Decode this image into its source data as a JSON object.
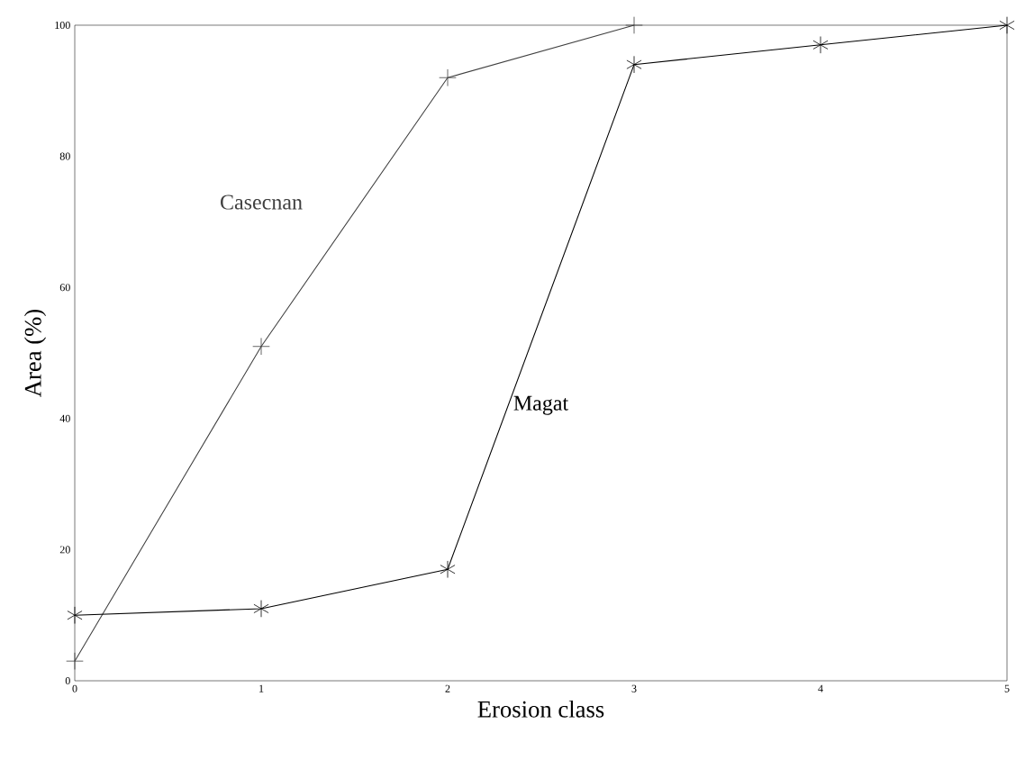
{
  "chart_data": {
    "type": "line",
    "xlabel": "Erosion class",
    "ylabel": "Area (%)",
    "x": [
      0,
      1,
      2,
      3,
      4,
      5
    ],
    "series": [
      {
        "name": "Casecnan",
        "color": "#404040",
        "marker": "cross",
        "x": [
          0,
          1,
          2,
          3
        ],
        "values": [
          3,
          51,
          92,
          100
        ]
      },
      {
        "name": "Magat",
        "color": "#000000",
        "marker": "cross",
        "values": [
          10,
          11,
          17,
          94,
          97,
          100
        ]
      }
    ],
    "xlim": [
      0,
      5
    ],
    "ylim": [
      0,
      100
    ],
    "xticks": [
      0,
      1,
      2,
      3,
      4,
      5
    ],
    "yticks": [
      0,
      20,
      40,
      60,
      80,
      100
    ],
    "grid": false,
    "legend": false,
    "line_style": "solid"
  }
}
